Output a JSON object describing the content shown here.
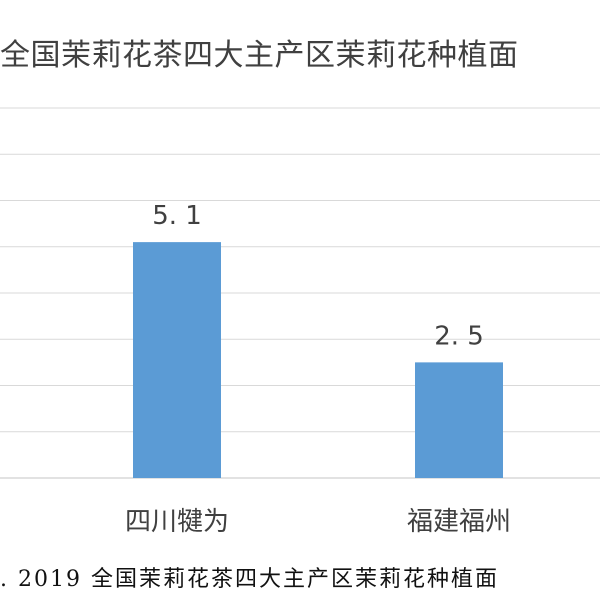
{
  "chart_data": {
    "type": "bar",
    "title": "全国茉莉花茶四大主产区茉莉花种植面",
    "categories": [
      "四川犍为",
      "福建福州"
    ],
    "values": [
      5.1,
      2.5
    ],
    "value_labels": [
      "5. 1",
      "2. 5"
    ],
    "ylim": [
      0,
      8
    ],
    "grid": true,
    "legend": "none",
    "bar_color": "#5b9bd5"
  },
  "caption": ". 2019 全国茉莉花茶四大主产区茉莉花种植面"
}
